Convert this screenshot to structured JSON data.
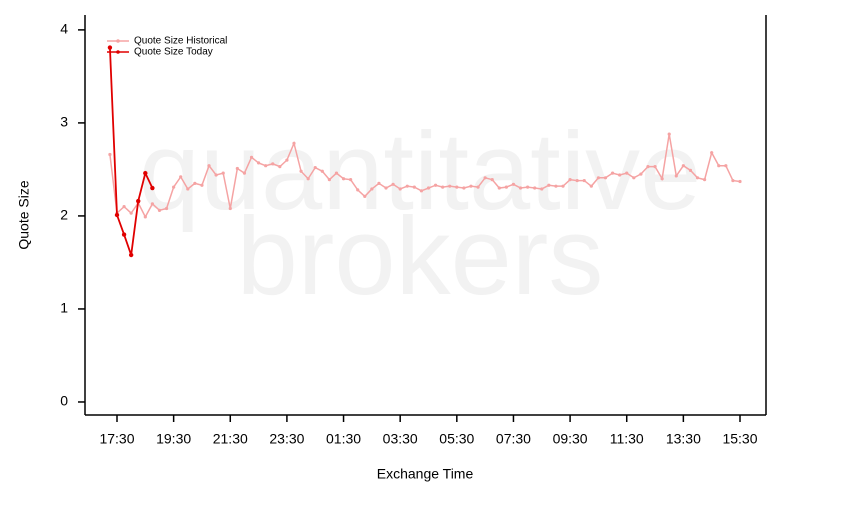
{
  "chart_data": {
    "type": "line",
    "x_label": "Exchange Time",
    "y_label": "Quote Size",
    "watermark": [
      "quantitative",
      "brokers"
    ],
    "x": [
      "17:15",
      "17:30",
      "17:45",
      "18:00",
      "18:15",
      "18:30",
      "18:45",
      "19:00",
      "19:15",
      "19:30",
      "19:45",
      "20:00",
      "20:15",
      "20:30",
      "20:45",
      "21:00",
      "21:15",
      "21:30",
      "21:45",
      "22:00",
      "22:15",
      "22:30",
      "22:45",
      "23:00",
      "23:15",
      "23:30",
      "23:45",
      "00:00",
      "00:15",
      "00:30",
      "00:45",
      "01:00",
      "01:15",
      "01:30",
      "01:45",
      "02:00",
      "02:15",
      "02:30",
      "02:45",
      "03:00",
      "03:15",
      "03:30",
      "03:45",
      "04:00",
      "04:15",
      "04:30",
      "04:45",
      "05:00",
      "05:15",
      "05:30",
      "05:45",
      "06:00",
      "06:15",
      "06:30",
      "06:45",
      "07:00",
      "07:15",
      "07:30",
      "07:45",
      "08:00",
      "08:15",
      "08:30",
      "08:45",
      "09:00",
      "09:15",
      "09:30",
      "09:45",
      "10:00",
      "10:15",
      "10:30",
      "10:45",
      "11:00",
      "11:15",
      "11:30",
      "11:45",
      "12:00",
      "12:15",
      "12:30",
      "12:45",
      "13:00",
      "13:15",
      "13:30",
      "13:45",
      "14:00",
      "14:15",
      "14:30",
      "14:45",
      "15:00",
      "15:15",
      "15:30"
    ],
    "xticks": [
      "17:30",
      "19:30",
      "21:30",
      "23:30",
      "01:30",
      "03:30",
      "05:30",
      "07:30",
      "09:30",
      "11:30",
      "13:30",
      "15:30"
    ],
    "ylim": [
      -0.14,
      4.16
    ],
    "yticks": [
      0,
      1,
      2,
      3,
      4
    ],
    "legend": "top-left",
    "series": [
      {
        "name": "Quote Size Historical",
        "color": "#f5a3a3",
        "values": [
          2.66,
          2.03,
          2.1,
          2.03,
          2.14,
          1.99,
          2.13,
          2.06,
          2.08,
          2.31,
          2.42,
          2.29,
          2.35,
          2.33,
          2.54,
          2.44,
          2.46,
          2.08,
          2.51,
          2.46,
          2.63,
          2.57,
          2.54,
          2.56,
          2.53,
          2.6,
          2.78,
          2.48,
          2.4,
          2.52,
          2.48,
          2.39,
          2.46,
          2.4,
          2.39,
          2.28,
          2.21,
          2.29,
          2.35,
          2.3,
          2.34,
          2.29,
          2.32,
          2.31,
          2.27,
          2.3,
          2.33,
          2.31,
          2.32,
          2.31,
          2.3,
          2.32,
          2.31,
          2.41,
          2.39,
          2.3,
          2.31,
          2.34,
          2.3,
          2.31,
          2.3,
          2.29,
          2.33,
          2.32,
          2.32,
          2.39,
          2.38,
          2.38,
          2.32,
          2.41,
          2.41,
          2.46,
          2.44,
          2.46,
          2.41,
          2.45,
          2.53,
          2.53,
          2.4,
          2.88,
          2.43,
          2.54,
          2.49,
          2.41,
          2.39,
          2.68,
          2.54,
          2.54,
          2.38,
          2.37
        ]
      },
      {
        "name": "Quote Size Today",
        "color": "#e00000",
        "values": [
          3.81,
          2.01,
          1.8,
          1.58,
          2.16,
          2.46,
          2.3,
          null,
          null,
          null,
          null,
          null,
          null,
          null,
          null,
          null,
          null,
          null,
          null,
          null,
          null,
          null,
          null,
          null,
          null,
          null,
          null,
          null,
          null,
          null,
          null,
          null,
          null,
          null,
          null,
          null,
          null,
          null,
          null,
          null,
          null,
          null,
          null,
          null,
          null,
          null,
          null,
          null,
          null,
          null,
          null,
          null,
          null,
          null,
          null,
          null,
          null,
          null,
          null,
          null,
          null,
          null,
          null,
          null,
          null,
          null,
          null,
          null,
          null,
          null,
          null,
          null,
          null,
          null,
          null,
          null,
          null,
          null,
          null,
          null,
          null,
          null,
          null,
          null,
          null,
          null,
          null,
          null,
          null,
          null
        ]
      }
    ]
  }
}
